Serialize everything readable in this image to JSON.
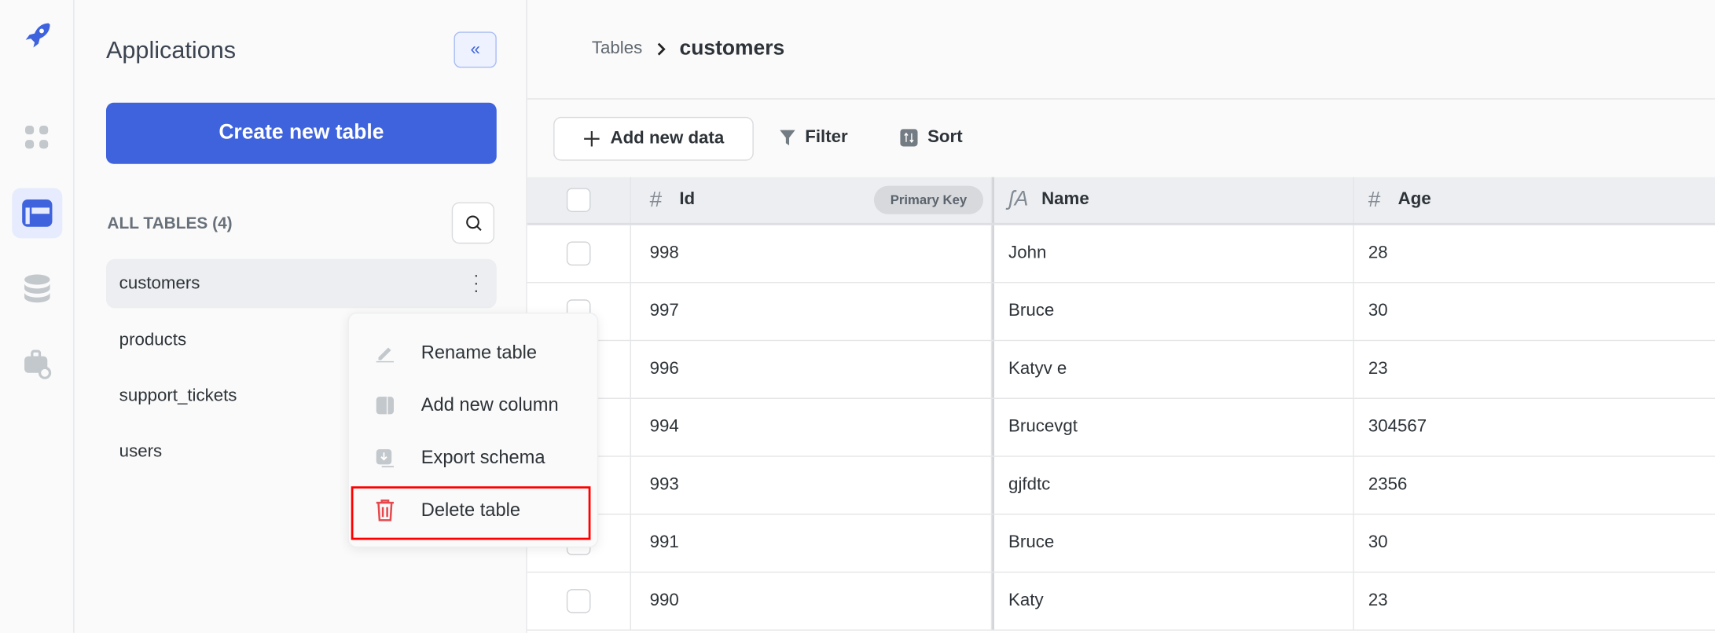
{
  "sidebar": {
    "panel_title": "Applications",
    "collapse_icon": "«",
    "create_button": "Create new table",
    "all_tables_label": "ALL TABLES (4)",
    "tables": [
      "customers",
      "products",
      "support_tickets",
      "users"
    ],
    "active_table": "customers",
    "accent": "#3e63dd"
  },
  "context_menu": {
    "items": [
      "Rename table",
      "Add new column",
      "Export schema",
      "Delete table"
    ],
    "highlight_color": "#ff0000",
    "danger_color": "#e5484d"
  },
  "header": {
    "breadcrumb_root": "Tables",
    "breadcrumb_current": "customers"
  },
  "toolbar": {
    "add_label": "Add new data",
    "filter_label": "Filter",
    "sort_label": "Sort"
  },
  "table": {
    "columns": [
      {
        "name": "Id",
        "badge": "Primary Key"
      },
      {
        "name": "Name"
      },
      {
        "name": "Age"
      }
    ],
    "rows": [
      [
        "998",
        "John",
        "28"
      ],
      [
        "997",
        "Bruce",
        "30"
      ],
      [
        "996",
        "Katyv e",
        "23"
      ],
      [
        "994",
        "Brucevgt",
        "304567"
      ],
      [
        "993",
        "gjfdtc",
        "2356"
      ],
      [
        "991",
        "Bruce",
        "30"
      ],
      [
        "990",
        "Katy",
        "23"
      ]
    ]
  }
}
